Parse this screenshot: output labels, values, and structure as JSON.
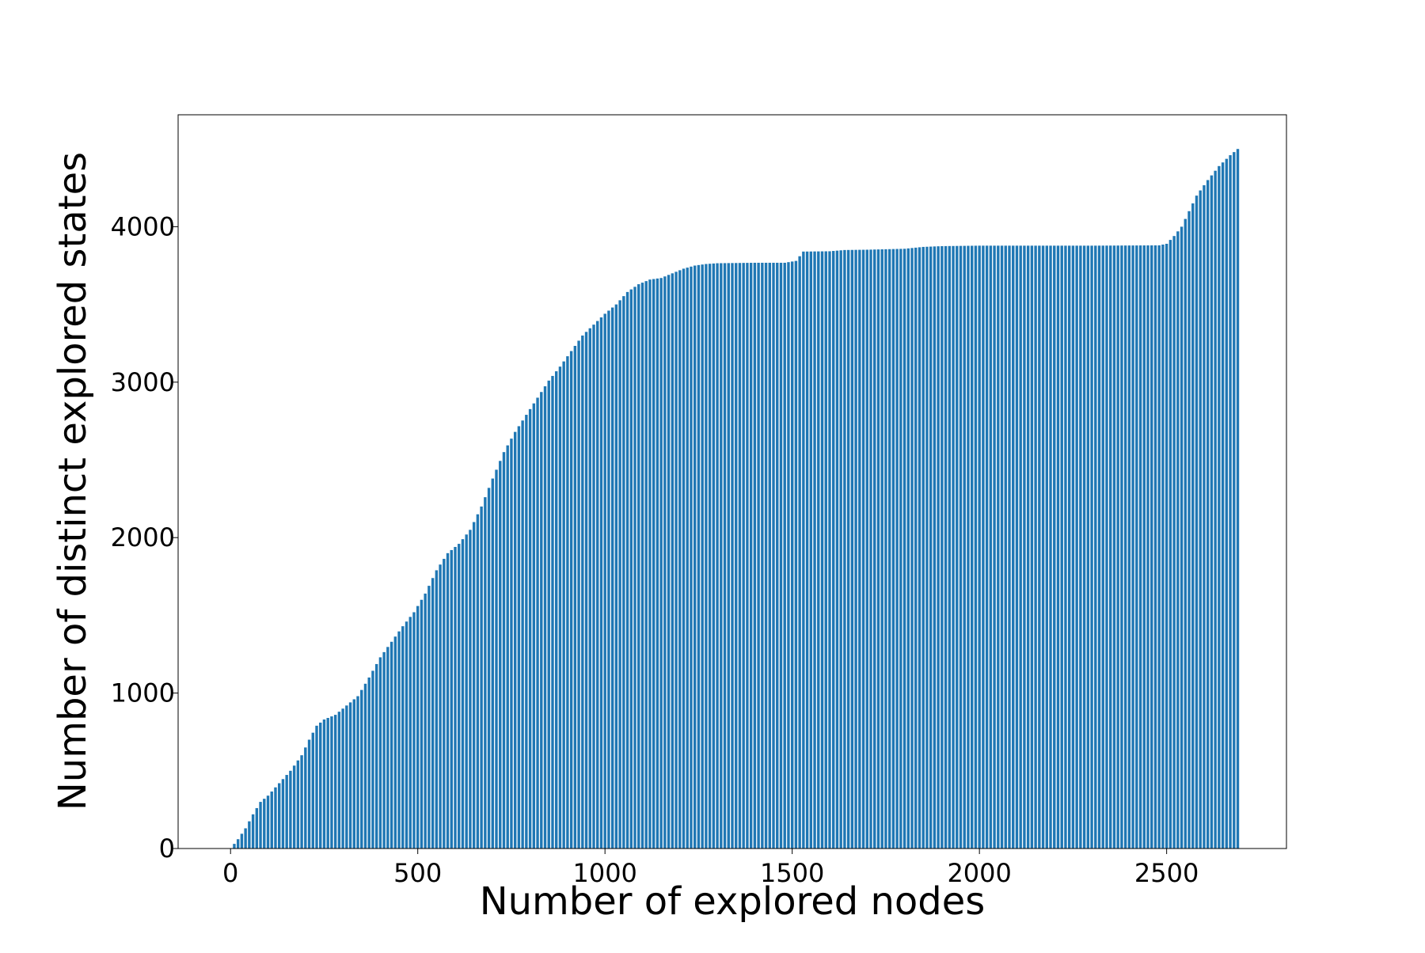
{
  "chart_data": {
    "type": "bar",
    "title": "",
    "xlabel": "Number of explored nodes",
    "ylabel": "Number of distinct explored states",
    "xlim": [
      -140,
      2820
    ],
    "ylim": [
      0,
      4720
    ],
    "xticks": [
      0,
      500,
      1000,
      1500,
      2000,
      2500
    ],
    "yticks": [
      0,
      1000,
      2000,
      3000,
      4000
    ],
    "grid": false,
    "legend": "none",
    "bar_color": "#1f77b4",
    "bar_step": 10,
    "x_start": 0,
    "x_end": 2690,
    "curve_points": [
      [
        0,
        0
      ],
      [
        20,
        60
      ],
      [
        40,
        130
      ],
      [
        60,
        220
      ],
      [
        80,
        300
      ],
      [
        100,
        340
      ],
      [
        130,
        420
      ],
      [
        160,
        500
      ],
      [
        190,
        600
      ],
      [
        210,
        700
      ],
      [
        230,
        790
      ],
      [
        250,
        830
      ],
      [
        280,
        860
      ],
      [
        310,
        920
      ],
      [
        340,
        980
      ],
      [
        370,
        1100
      ],
      [
        400,
        1230
      ],
      [
        430,
        1330
      ],
      [
        460,
        1430
      ],
      [
        490,
        1520
      ],
      [
        520,
        1640
      ],
      [
        550,
        1790
      ],
      [
        580,
        1900
      ],
      [
        610,
        1960
      ],
      [
        640,
        2050
      ],
      [
        670,
        2200
      ],
      [
        700,
        2380
      ],
      [
        730,
        2550
      ],
      [
        760,
        2680
      ],
      [
        790,
        2790
      ],
      [
        820,
        2900
      ],
      [
        850,
        3010
      ],
      [
        880,
        3100
      ],
      [
        910,
        3200
      ],
      [
        940,
        3300
      ],
      [
        970,
        3370
      ],
      [
        1000,
        3440
      ],
      [
        1030,
        3500
      ],
      [
        1060,
        3580
      ],
      [
        1090,
        3630
      ],
      [
        1120,
        3660
      ],
      [
        1150,
        3670
      ],
      [
        1180,
        3700
      ],
      [
        1210,
        3730
      ],
      [
        1240,
        3750
      ],
      [
        1270,
        3760
      ],
      [
        1300,
        3765
      ],
      [
        1400,
        3768
      ],
      [
        1480,
        3768
      ],
      [
        1510,
        3780
      ],
      [
        1530,
        3840
      ],
      [
        1600,
        3842
      ],
      [
        1640,
        3850
      ],
      [
        1700,
        3852
      ],
      [
        1800,
        3858
      ],
      [
        1850,
        3870
      ],
      [
        1900,
        3875
      ],
      [
        2000,
        3878
      ],
      [
        2300,
        3878
      ],
      [
        2480,
        3880
      ],
      [
        2500,
        3890
      ],
      [
        2520,
        3940
      ],
      [
        2540,
        4000
      ],
      [
        2560,
        4100
      ],
      [
        2580,
        4200
      ],
      [
        2610,
        4300
      ],
      [
        2640,
        4390
      ],
      [
        2670,
        4460
      ],
      [
        2690,
        4500
      ]
    ]
  }
}
